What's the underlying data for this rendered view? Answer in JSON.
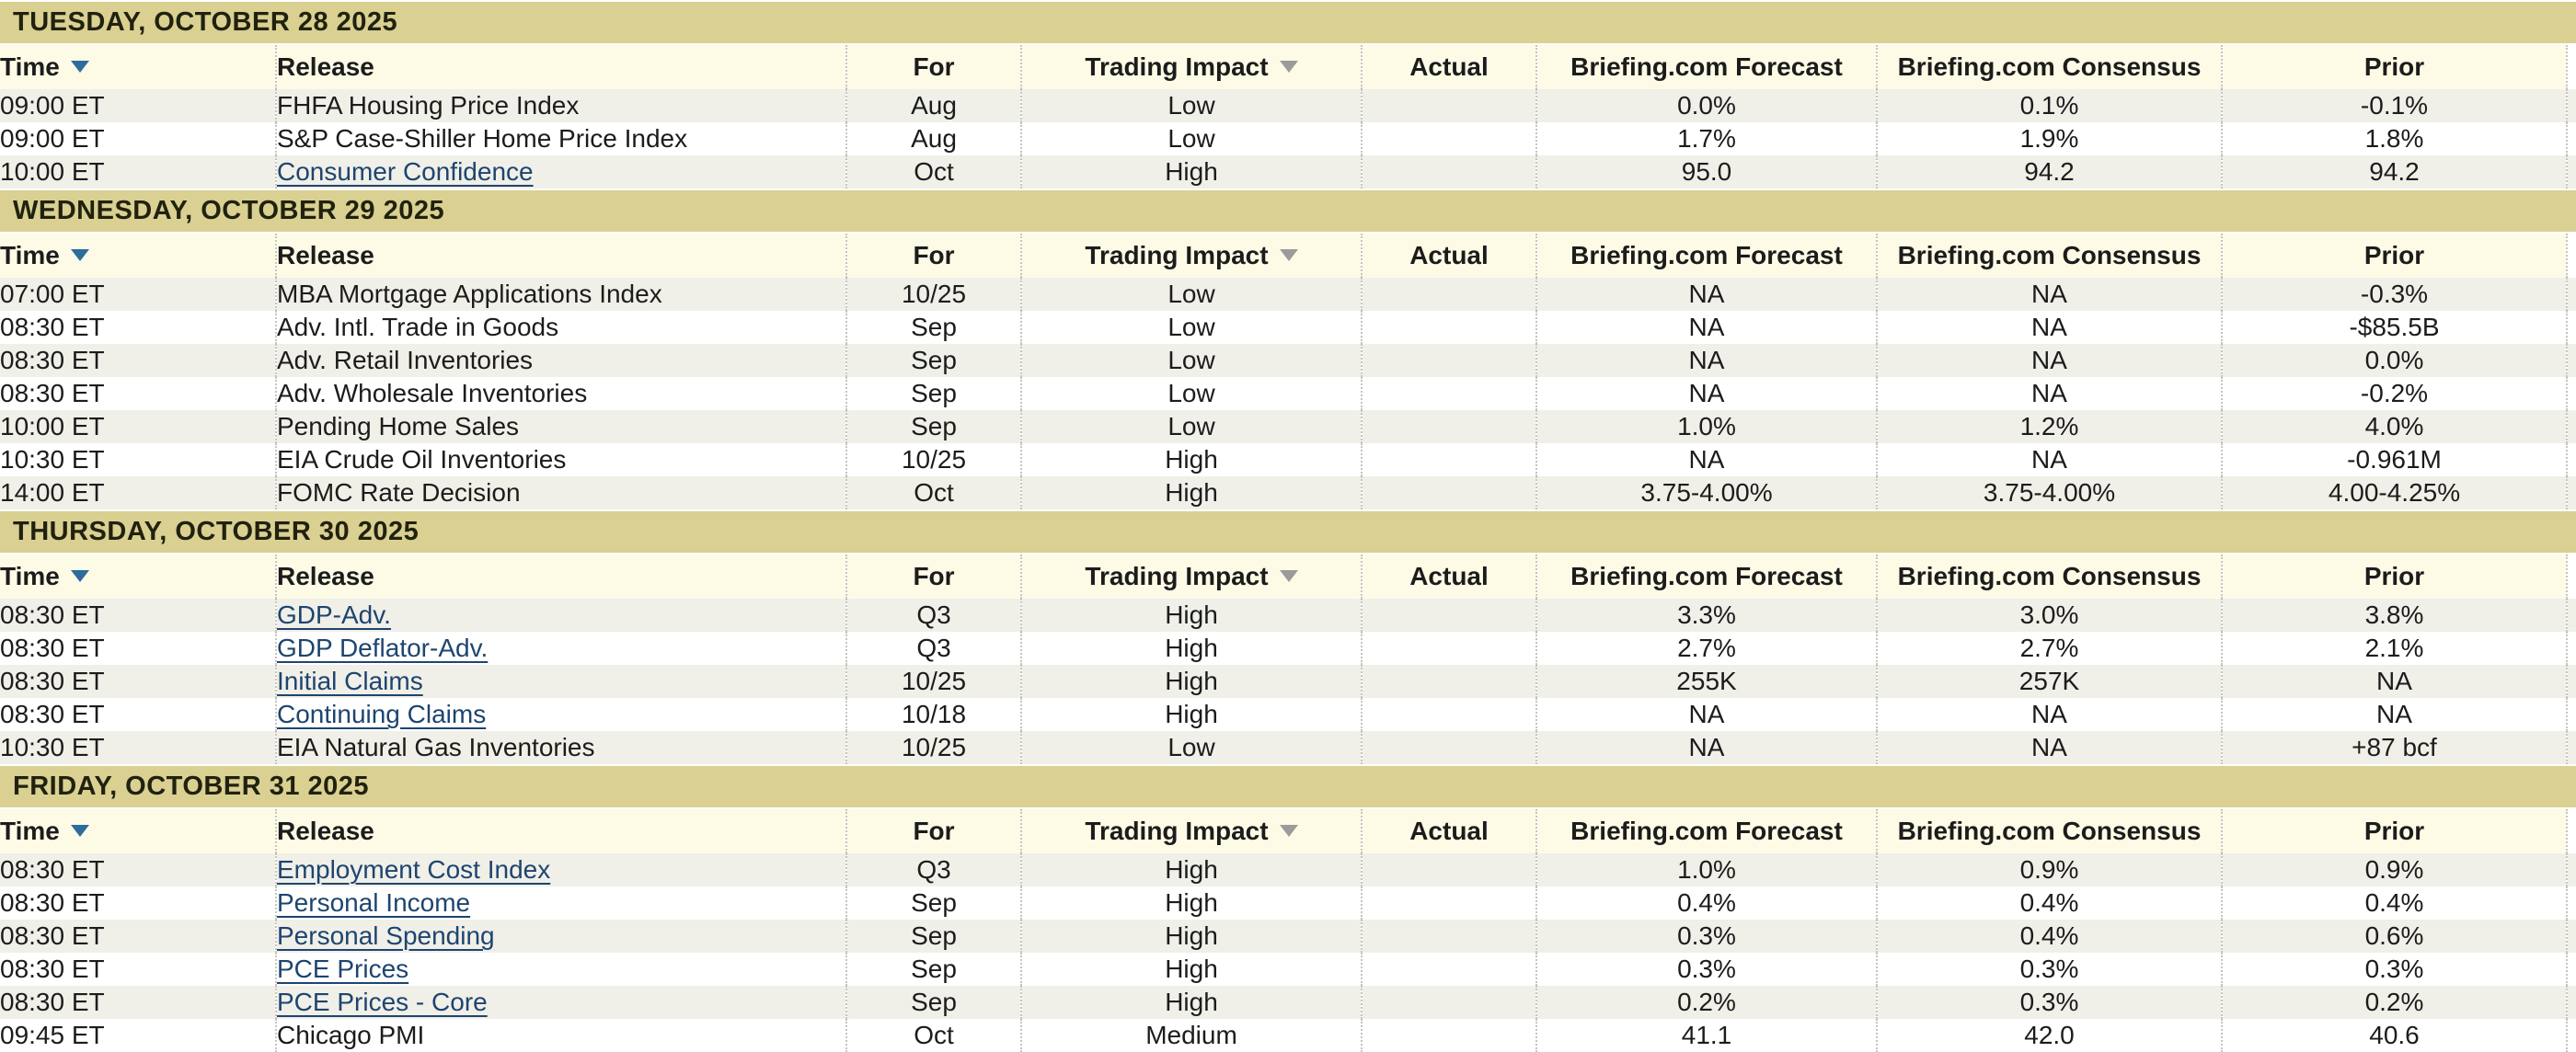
{
  "columns": [
    {
      "key": "time",
      "label": "Time",
      "sort": "blue",
      "align": "l"
    },
    {
      "key": "release",
      "label": "Release",
      "sort": null,
      "align": "l"
    },
    {
      "key": "for",
      "label": "For",
      "sort": null,
      "align": "c"
    },
    {
      "key": "impact",
      "label": "Trading Impact",
      "sort": "gray",
      "align": "c"
    },
    {
      "key": "actual",
      "label": "Actual",
      "sort": null,
      "align": "c"
    },
    {
      "key": "forecast",
      "label": "Briefing.com Forecast",
      "sort": null,
      "align": "c"
    },
    {
      "key": "consensus",
      "label": "Briefing.com Consensus",
      "sort": null,
      "align": "c"
    },
    {
      "key": "prior",
      "label": "Prior",
      "sort": null,
      "align": "c"
    }
  ],
  "sections": [
    {
      "day": "TUESDAY, OCTOBER 28 2025",
      "rows": [
        {
          "time": "09:00 ET",
          "release": "FHFA Housing Price Index",
          "link": false,
          "for": "Aug",
          "impact": "Low",
          "actual": "",
          "forecast": "0.0%",
          "consensus": "0.1%",
          "prior": "-0.1%"
        },
        {
          "time": "09:00 ET",
          "release": "S&P Case-Shiller Home Price Index",
          "link": false,
          "for": "Aug",
          "impact": "Low",
          "actual": "",
          "forecast": "1.7%",
          "consensus": "1.9%",
          "prior": "1.8%"
        },
        {
          "time": "10:00 ET",
          "release": "Consumer Confidence",
          "link": true,
          "for": "Oct",
          "impact": "High",
          "actual": "",
          "forecast": "95.0",
          "consensus": "94.2",
          "prior": "94.2"
        }
      ]
    },
    {
      "day": "WEDNESDAY, OCTOBER 29 2025",
      "rows": [
        {
          "time": "07:00 ET",
          "release": "MBA Mortgage Applications Index",
          "link": false,
          "for": "10/25",
          "impact": "Low",
          "actual": "",
          "forecast": "NA",
          "consensus": "NA",
          "prior": "-0.3%"
        },
        {
          "time": "08:30 ET",
          "release": "Adv. Intl. Trade in Goods",
          "link": false,
          "for": "Sep",
          "impact": "Low",
          "actual": "",
          "forecast": "NA",
          "consensus": "NA",
          "prior": "-$85.5B"
        },
        {
          "time": "08:30 ET",
          "release": "Adv. Retail Inventories",
          "link": false,
          "for": "Sep",
          "impact": "Low",
          "actual": "",
          "forecast": "NA",
          "consensus": "NA",
          "prior": "0.0%"
        },
        {
          "time": "08:30 ET",
          "release": "Adv. Wholesale Inventories",
          "link": false,
          "for": "Sep",
          "impact": "Low",
          "actual": "",
          "forecast": "NA",
          "consensus": "NA",
          "prior": "-0.2%"
        },
        {
          "time": "10:00 ET",
          "release": "Pending Home Sales",
          "link": false,
          "for": "Sep",
          "impact": "Low",
          "actual": "",
          "forecast": "1.0%",
          "consensus": "1.2%",
          "prior": "4.0%"
        },
        {
          "time": "10:30 ET",
          "release": "EIA Crude Oil Inventories",
          "link": false,
          "for": "10/25",
          "impact": "High",
          "actual": "",
          "forecast": "NA",
          "consensus": "NA",
          "prior": "-0.961M"
        },
        {
          "time": "14:00 ET",
          "release": "FOMC Rate Decision",
          "link": false,
          "for": "Oct",
          "impact": "High",
          "actual": "",
          "forecast": "3.75-4.00%",
          "consensus": "3.75-4.00%",
          "prior": "4.00-4.25%"
        }
      ]
    },
    {
      "day": "THURSDAY, OCTOBER 30 2025",
      "rows": [
        {
          "time": "08:30 ET",
          "release": "GDP-Adv.",
          "link": true,
          "for": "Q3",
          "impact": "High",
          "actual": "",
          "forecast": "3.3%",
          "consensus": "3.0%",
          "prior": "3.8%"
        },
        {
          "time": "08:30 ET",
          "release": "GDP Deflator-Adv.",
          "link": true,
          "for": "Q3",
          "impact": "High",
          "actual": "",
          "forecast": "2.7%",
          "consensus": "2.7%",
          "prior": "2.1%"
        },
        {
          "time": "08:30 ET",
          "release": "Initial Claims",
          "link": true,
          "for": "10/25",
          "impact": "High",
          "actual": "",
          "forecast": "255K",
          "consensus": "257K",
          "prior": "NA"
        },
        {
          "time": "08:30 ET",
          "release": "Continuing Claims",
          "link": true,
          "for": "10/18",
          "impact": "High",
          "actual": "",
          "forecast": "NA",
          "consensus": "NA",
          "prior": "NA"
        },
        {
          "time": "10:30 ET",
          "release": "EIA Natural Gas Inventories",
          "link": false,
          "for": "10/25",
          "impact": "Low",
          "actual": "",
          "forecast": "NA",
          "consensus": "NA",
          "prior": "+87 bcf"
        }
      ]
    },
    {
      "day": "FRIDAY, OCTOBER 31 2025",
      "rows": [
        {
          "time": "08:30 ET",
          "release": "Employment Cost Index",
          "link": true,
          "for": "Q3",
          "impact": "High",
          "actual": "",
          "forecast": "1.0%",
          "consensus": "0.9%",
          "prior": "0.9%"
        },
        {
          "time": "08:30 ET",
          "release": "Personal Income",
          "link": true,
          "for": "Sep",
          "impact": "High",
          "actual": "",
          "forecast": "0.4%",
          "consensus": "0.4%",
          "prior": "0.4%"
        },
        {
          "time": "08:30 ET",
          "release": "Personal Spending",
          "link": true,
          "for": "Sep",
          "impact": "High",
          "actual": "",
          "forecast": "0.3%",
          "consensus": "0.4%",
          "prior": "0.6%"
        },
        {
          "time": "08:30 ET",
          "release": "PCE Prices",
          "link": true,
          "for": "Sep",
          "impact": "High",
          "actual": "",
          "forecast": "0.3%",
          "consensus": "0.3%",
          "prior": "0.3%"
        },
        {
          "time": "08:30 ET",
          "release": "PCE Prices - Core",
          "link": true,
          "for": "Sep",
          "impact": "High",
          "actual": "",
          "forecast": "0.2%",
          "consensus": "0.3%",
          "prior": "0.2%"
        },
        {
          "time": "09:45 ET",
          "release": "Chicago PMI",
          "link": false,
          "for": "Oct",
          "impact": "Medium",
          "actual": "",
          "forecast": "41.1",
          "consensus": "42.0",
          "prior": "40.6"
        }
      ]
    }
  ],
  "colors": {
    "day-header-bg": "#d9d092",
    "col-header-bg": "#fdfbe6",
    "row-alt-bg": "#f0efe8",
    "row-bg": "#ffffff",
    "link": "#1d456f",
    "sort-arrow-active": "#2d6d9d",
    "sort-arrow-inactive": "#9b9b99",
    "text": "#1c1c1c",
    "divider": "#c6c5bd"
  }
}
